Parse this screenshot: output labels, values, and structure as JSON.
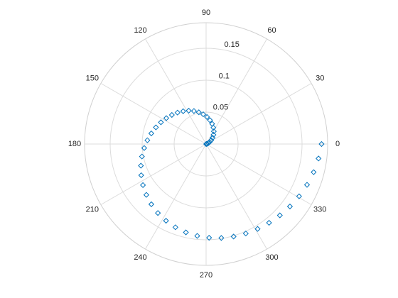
{
  "chart_data": {
    "type": "scatter",
    "coordinate_system": "polar",
    "marker": "diamond",
    "marker_color": "#0072BD",
    "theta_unit": "degrees",
    "rlim": [
      0,
      0.19
    ],
    "r_ticks": [
      0.05,
      0.1,
      0.15
    ],
    "r_tick_labels": [
      "0.05",
      "0.1",
      "0.15"
    ],
    "theta_ticks": [
      0,
      30,
      60,
      90,
      120,
      150,
      180,
      210,
      240,
      270,
      300,
      330
    ],
    "theta_tick_labels": [
      "0",
      "30",
      "60",
      "90",
      "120",
      "150",
      "180",
      "210",
      "240",
      "270",
      "300",
      "330"
    ],
    "grid": true,
    "series": [
      {
        "theta": [
          0,
          7.35,
          14.69,
          22.04,
          29.39,
          36.73,
          44.08,
          51.43,
          58.78,
          66.12,
          73.47,
          80.82,
          88.16,
          95.51,
          102.86,
          110.2,
          117.55,
          124.9,
          132.24,
          139.59,
          146.94,
          154.29,
          161.63,
          168.98,
          176.33,
          183.67,
          191.02,
          198.37,
          205.71,
          213.06,
          220.41,
          227.76,
          235.1,
          242.45,
          249.8,
          257.14,
          264.49,
          271.84,
          279.18,
          286.53,
          293.88,
          301.22,
          308.57,
          315.92,
          323.27,
          330.61,
          337.96,
          345.31,
          352.65,
          360
        ],
        "r": [
          0.0001,
          0.0005,
          0.0016,
          0.0036,
          0.0065,
          0.01,
          0.0141,
          0.0185,
          0.0233,
          0.0281,
          0.033,
          0.0378,
          0.0424,
          0.0468,
          0.051,
          0.0551,
          0.0589,
          0.0627,
          0.0665,
          0.0703,
          0.0743,
          0.0784,
          0.0827,
          0.0873,
          0.092,
          0.097,
          0.1022,
          0.1074,
          0.1126,
          0.1178,
          0.1227,
          0.1274,
          0.1317,
          0.1355,
          0.1389,
          0.1419,
          0.1445,
          0.1469,
          0.149,
          0.1511,
          0.1532,
          0.1554,
          0.1578,
          0.1605,
          0.1635,
          0.1668,
          0.1702,
          0.1738,
          0.1772,
          0.1805
        ]
      }
    ]
  }
}
